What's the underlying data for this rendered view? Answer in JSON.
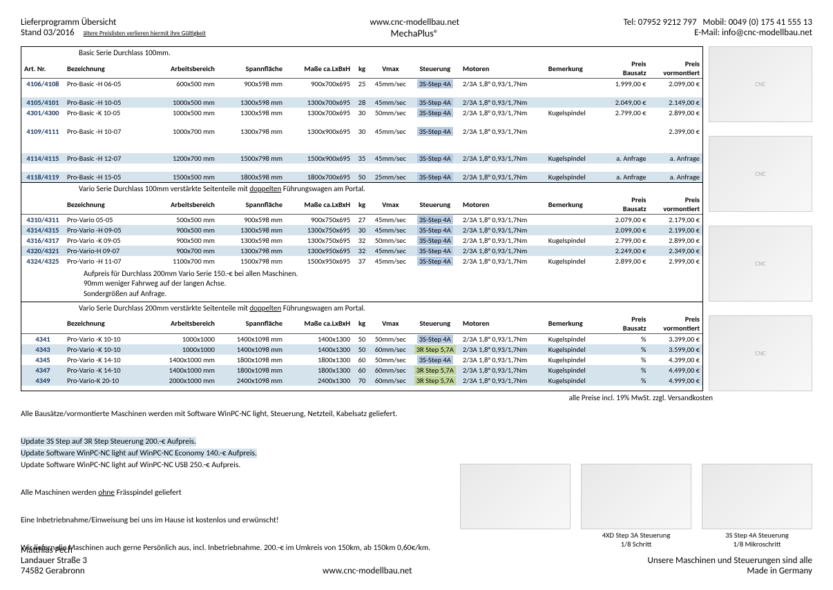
{
  "header": {
    "left1": "Lieferprogramm Übersicht",
    "left2": "Stand 03/2016",
    "leftnote": "ältere Preislisten verlieren hiermit ihre Gültigkeit",
    "centerUrl": "www.cnc-modellbau.net",
    "centerBrand": "MechaPlus®",
    "rightTel": "Tel: 07952 9212 797",
    "rightMobil": "Mobil: 0049 (0) 175 41 555 13",
    "rightMail": "E-Mail: info@cnc-modellbau.net"
  },
  "sections": [
    {
      "title": "Basic Serie Durchlass 100mm.",
      "head": [
        "Art. Nr.",
        "Bezeichnung",
        "Arbeitsbereich",
        "Spannfläche",
        "Maße ca.LxBxH",
        "kg",
        "Vmax",
        "Steuerung",
        "Motoren",
        "Bemerkung",
        "Preis Bausatz",
        "Preis vormontiert"
      ],
      "rows": [
        {
          "art": "4106/4108",
          "bez": "Pro-Basic -H 06-05",
          "arb": "600x500  mm",
          "spa": "900x598  mm",
          "mas": "900x700x695",
          "kg": "25",
          "vm": "45mm/sec",
          "st": "3S-Step 4A",
          "mo": "2/3A 1,8° 0,93/1,7Nm",
          "be": "",
          "p1": "1.999,00 €",
          "p2": "2.099,00 €",
          "alt": false
        },
        {
          "blank": true
        },
        {
          "art": "4105/4101",
          "bez": "Pro-Basic -H 10-05",
          "arb": "1000x500  mm",
          "spa": "1300x598  mm",
          "mas": "1300x700x695",
          "kg": "28",
          "vm": "45mm/sec",
          "st": "3S-Step 4A",
          "mo": "2/3A 1,8° 0,93/1,7Nm",
          "be": "",
          "p1": "2.049,00 €",
          "p2": "2.149,00 €",
          "alt": true
        },
        {
          "art": "4301/4300",
          "bez": "Pro-Basic -K 10-05",
          "arb": "1000x500  mm",
          "spa": "1300x598  mm",
          "mas": "1300x700x695",
          "kg": "30",
          "vm": "50mm/sec",
          "st": "3S-Step 4A",
          "mo": "2/3A 1,8° 0,93/1,7Nm",
          "be": "Kugelspindel",
          "p1": "2.799,00 €",
          "p2": "2.899,00 €",
          "alt": false
        },
        {
          "blank": true
        },
        {
          "art": "4109/4111",
          "bez": "Pro-Basic -H 10-07",
          "arb": "1000x700  mm",
          "spa": "1300x798  mm",
          "mas": "1300x900x695",
          "kg": "30",
          "vm": "45mm/sec",
          "st": "3S-Step 4A",
          "mo": "2/3A 1,8° 0,93/1,7Nm",
          "be": "",
          "p1": "",
          "p2": "2.399,00 €",
          "alt": false
        },
        {
          "blank": true
        },
        {
          "blank": true
        },
        {
          "art": "4114/4115",
          "bez": "Pro-Basic -H 12-07",
          "arb": "1200x700  mm",
          "spa": "1500x798  mm",
          "mas": "1500x900x695",
          "kg": "35",
          "vm": "45mm/sec",
          "st": "3S-Step 4A",
          "mo": "2/3A 1,8° 0,93/1,7Nm",
          "be": "Kugelspindel",
          "p1": "a. Anfrage",
          "p2": "a. Anfrage",
          "alt": true
        },
        {
          "blank": true
        },
        {
          "art": "4118/4119",
          "bez": "Pro-Basic -H 15-05",
          "arb": "1500x500  mm",
          "spa": "1800x598  mm",
          "mas": "1800x700x695",
          "kg": "50",
          "vm": "25mm/sec",
          "st": "3S-Step 4A",
          "mo": "2/3A 1,8° 0,93/1,7Nm",
          "be": "Kugelspindel",
          "p1": "a. Anfrage",
          "p2": "a. Anfrage",
          "alt": true
        }
      ]
    },
    {
      "title": "Vario Serie Durchlass 100mm verstärkte Seitenteile mit <span class='u'>doppelten</span> Führungswagen am Portal.",
      "head": [
        "",
        "Bezeichnung",
        "Arbeitsbereich",
        "Spannfläche",
        "Maße ca.LxBxH",
        "kg",
        "Vmax",
        "Steuerung",
        "Motoren",
        "Bemerkung",
        "Preis Bausatz",
        "Preis vormontiert"
      ],
      "rows": [
        {
          "art": "4310/4311",
          "bez": "Pro-Vario 05-05",
          "arb": "500x500  mm",
          "spa": "900x598  mm",
          "mas": "900x750x695",
          "kg": "27",
          "vm": "45mm/sec",
          "st": "3S-Step 4A",
          "mo": "2/3A 1,8° 0,93/1,7Nm",
          "be": "",
          "p1": "2.079,00 €",
          "p2": "2.179,00 €"
        },
        {
          "art": "4314/4315",
          "bez": "Pro-Vario -H 09-05",
          "arb": "900x500  mm",
          "spa": "1300x598  mm",
          "mas": "1300x750x695",
          "kg": "30",
          "vm": "45mm/sec",
          "st": "3S-Step 4A",
          "mo": "2/3A 1,8° 0,93/1,7Nm",
          "be": "",
          "p1": "2.099,00 €",
          "p2": "2.199,00 €",
          "alt": true
        },
        {
          "art": "4316/4317",
          "bez": "Pro-Vario -K 09-05",
          "arb": "900x500  mm",
          "spa": "1300x598  mm",
          "mas": "1300x750x695",
          "kg": "32",
          "vm": "50mm/sec",
          "st": "3S-Step 4A",
          "mo": "2/3A 1,8° 0,93/1,7Nm",
          "be": "Kugelspindel",
          "p1": "2.799,00 €",
          "p2": "2.899,00 €"
        },
        {
          "art": "4320/4321",
          "bez": "Pro-Vario-H 09-07",
          "arb": "900x700  mm",
          "spa": "1300x798  mm",
          "mas": "1300x950x695",
          "kg": "32",
          "vm": "45mm/sec",
          "st": "3S-Step 4A",
          "mo": "2/3A 1,8° 0,93/1,7Nm",
          "be": "",
          "p1": "2.249,00 €",
          "p2": "2.349,00 €",
          "alt": true
        },
        {
          "art": "4324/4325",
          "bez": "Pro-Vario -H 11-07",
          "arb": "1100x700  mm",
          "spa": "1500x798  mm",
          "mas": "1500x950x695",
          "kg": "37",
          "vm": "45mm/sec",
          "st": "3S-Step 4A",
          "mo": "2/3A 1,8° 0,93/1,7Nm",
          "be": "Kugelspindel",
          "p1": "2.899,00 €",
          "p2": "2.999,00 €"
        }
      ],
      "notes": [
        "Aufpreis für Durchlass 200mm Vario Serie 150.-€ bei allen Maschinen.",
        "90mm weniger Fahrweg auf der langen Achse.",
        "Sondergrößen auf Anfrage."
      ]
    },
    {
      "title": "Vario Serie Durchlass 200mm verstärkte Seitenteile mit <span class='u'>doppelten</span> Führungswagen am Portal.",
      "head": [
        "",
        "Bezeichnung",
        "Arbeitsbereich",
        "Spannfläche",
        "Maße ca.LxBxH",
        "kg",
        "Vmax",
        "Steuerung",
        "Motoren",
        "Bemerkung",
        "Preis Bausatz",
        "Preis vormontiert"
      ],
      "rows": [
        {
          "art": "4341",
          "bez": "Pro-Vario -K 10-10",
          "arb": "1000x1000",
          "spa": "1400x1098  mm",
          "mas": "1400x1300",
          "kg": "50",
          "vm": "50mm/sec",
          "st": "3S-Step 4A",
          "mo": "2/3A 1,8° 0,93/1,7Nm",
          "be": "Kugelspindel",
          "p1": "%",
          "p2": "3.399,00 €"
        },
        {
          "art": "4343",
          "bez": "Pro-Vario -K 10-10",
          "arb": "1000x1000",
          "spa": "1400x1098  mm",
          "mas": "1400x1300",
          "kg": "50",
          "vm": "60mm/sec",
          "st": "3R Step 5,7A",
          "st2": true,
          "mo": "2/3A 1,8° 0,93/1,7Nm",
          "be": "Kugelspindel",
          "p1": "%",
          "p2": "3.599,00 €",
          "alt": true
        },
        {
          "art": "4345",
          "bez": "Pro-Vario -K 14-10",
          "arb": "1400x1000  mm",
          "spa": "1800x1098  mm",
          "mas": "1800x1300",
          "kg": "60",
          "vm": "50mm/sec",
          "st": "3S-Step 4A",
          "mo": "2/3A 1,8° 0,93/1,7Nm",
          "be": "Kugelspindel",
          "p1": "%",
          "p2": "4.399,00 €"
        },
        {
          "art": "4347",
          "bez": "Pro-Vario -K 14-10",
          "arb": "1400x1000  mm",
          "spa": "1800x1098  mm",
          "mas": "1800x1300",
          "kg": "60",
          "vm": "60mm/sec",
          "st": "3R Step 5,7A",
          "st2": true,
          "mo": "2/3A 1,8° 0,93/1,7Nm",
          "be": "Kugelspindel",
          "p1": "%",
          "p2": "4.499,00 €",
          "alt": true
        },
        {
          "art": "4349",
          "bez": "Pro-Vario-K 20-10",
          "arb": "2000x1000  mm",
          "spa": "2400x1098  mm",
          "mas": "2400x1300",
          "kg": "70",
          "vm": "60mm/sec",
          "st": "3R Step 5,7A",
          "st2": true,
          "mo": "2/3A 1,8° 0,93/1,7Nm",
          "be": "Kugelspindel",
          "p1": "%",
          "p2": "4.999,00 €",
          "alt": true
        }
      ]
    }
  ],
  "priceNote": "alle  Preise incl. 19% MwSt. zzgl. Versandkosten",
  "below": [
    {
      "t": "Alle Bausätze/vormontierte Maschinen werden mit Software WinPC-NC light, Steuerung, Netzteil, Kabelsatz geliefert."
    },
    {
      "t": ""
    },
    {
      "t": "Update 3S Step auf 3R Step Steuerung 200.-€ Aufpreis.",
      "hl": true
    },
    {
      "t": "Update Software WinPC-NC light auf WinPC-NC Economy 140.-€ Aufpreis.",
      "hl": true
    },
    {
      "t": "Update Software WinPC-NC light auf WinPC-NC USB 250.-€ Aufpreis."
    },
    {
      "t": ""
    },
    {
      "t": "Alle Maschinen werden <span class='u'>ohne</span> Frässpindel geliefert"
    },
    {
      "t": ""
    },
    {
      "t": "Eine Inbetriebnahme/Einweisung bei uns im Hause ist kostenlos und erwünscht!"
    },
    {
      "t": ""
    },
    {
      "t": "Wir liefern die Maschinen auch gerne Persönlich aus, incl. Inbetriebnahme. 200.-€ im Umkreis von 150km, ab 150km 0,60€/km."
    }
  ],
  "accessories": [
    {
      "cap1": "",
      "cap2": ""
    },
    {
      "cap1": "4XD Step 3A Steuerung",
      "cap2": "1/8 Schritt"
    },
    {
      "cap1": "3S Step 4A Steuerung",
      "cap2": "1/8 Mikroschritt"
    }
  ],
  "footer": {
    "addr1": "Matthias Pech",
    "addr2": "Landauer Straße 3",
    "addr3": "74582 Gerabronn",
    "url": "www.cnc-modellbau.net",
    "r1": "Unsere Maschinen und Steuerungen sind alle",
    "r2": "Made in Germany"
  }
}
